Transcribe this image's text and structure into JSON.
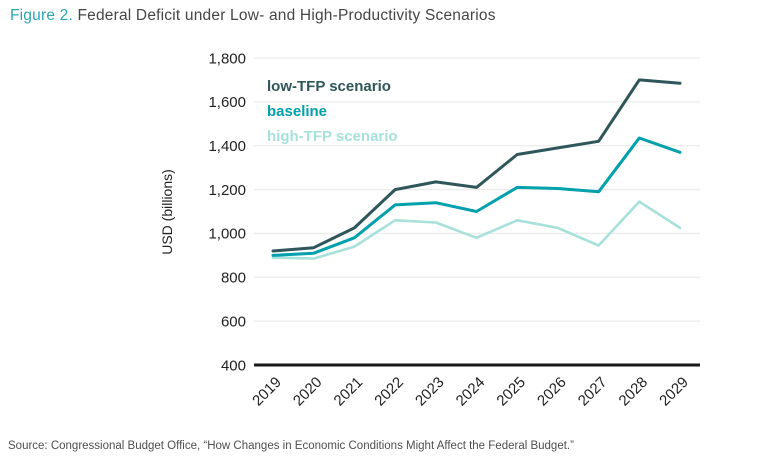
{
  "title": {
    "prefix": "Figure 2.",
    "rest": " Federal Deficit under Low- and High-Productivity Scenarios"
  },
  "source": "Source: Congressional Budget Office, “How Changes in Economic Conditions Might Affect the Federal Budget.”",
  "colors": {
    "title_accent": "#2aa7b4",
    "title_text": "#454545",
    "low_tfp": "#2e565b",
    "baseline": "#00a0ac",
    "high_tfp": "#a7e1da",
    "gridline": "#ececec",
    "axis_line": "#191919",
    "tick_text": "#222222"
  },
  "chart_data": {
    "type": "line",
    "x": [
      2019,
      2020,
      2021,
      2022,
      2023,
      2024,
      2025,
      2026,
      2027,
      2028,
      2029
    ],
    "series": [
      {
        "name": "low-TFP scenario",
        "color": "#2e565b",
        "width": 3,
        "values": [
          920,
          935,
          1025,
          1200,
          1235,
          1210,
          1360,
          1390,
          1420,
          1700,
          1685
        ]
      },
      {
        "name": "baseline",
        "color": "#00a0ac",
        "width": 3,
        "values": [
          900,
          910,
          980,
          1130,
          1140,
          1100,
          1210,
          1205,
          1190,
          1435,
          1370
        ]
      },
      {
        "name": "high-TFP scenario",
        "color": "#a7e1da",
        "width": 2.6,
        "values": [
          890,
          885,
          940,
          1060,
          1050,
          980,
          1060,
          1025,
          945,
          1145,
          1025
        ]
      }
    ],
    "ylabel": "USD (billions)",
    "xlabel": "",
    "ylim": [
      400,
      1800
    ],
    "y_ticks": [
      400,
      600,
      800,
      1000,
      1200,
      1400,
      1600,
      1800
    ],
    "y_tick_labels": [
      "400",
      "600",
      "800",
      "1,000",
      "1,200",
      "1,400",
      "1,600",
      "1,800"
    ],
    "grid": true,
    "legend_position": "top-left-inside"
  }
}
